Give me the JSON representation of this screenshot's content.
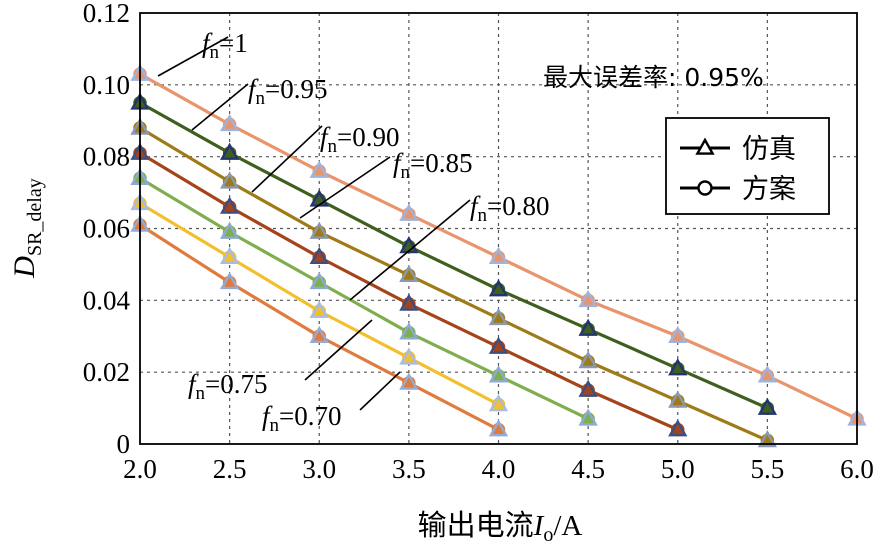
{
  "chart_data": {
    "type": "line",
    "xlabel": {
      "prefix": "输出电流",
      "var": "I",
      "sub": "o",
      "suffix": "/A"
    },
    "ylabel": {
      "var": "D",
      "sub": "SR_delay"
    },
    "xlim": [
      2.0,
      6.0
    ],
    "ylim": [
      0,
      0.12
    ],
    "x_ticks": [
      "2.0",
      "2.5",
      "3.0",
      "3.5",
      "4.0",
      "4.5",
      "5.0",
      "5.5",
      "6.0"
    ],
    "y_ticks": [
      "0",
      "0.02",
      "0.04",
      "0.06",
      "0.08",
      "0.10",
      "0.12"
    ],
    "grid": true,
    "note": "最大误差率: 0.95%",
    "legend": {
      "position": "upper-right",
      "entries": [
        {
          "label": "仿真",
          "marker": "triangle"
        },
        {
          "label": "方案",
          "marker": "circle"
        }
      ]
    },
    "series": [
      {
        "label": "=1",
        "color": "#E8956E",
        "tri_color": "#9FB4DD",
        "x": [
          2.0,
          2.5,
          3.0,
          3.5,
          4.0,
          4.5,
          5.0,
          5.5,
          6.0
        ],
        "y": [
          0.103,
          0.089,
          0.076,
          0.064,
          0.052,
          0.04,
          0.03,
          0.019,
          0.007
        ]
      },
      {
        "label": "=0.95",
        "color": "#3F5F1E",
        "tri_color": "#24356E",
        "x": [
          2.0,
          2.5,
          3.0,
          3.5,
          4.0,
          4.5,
          5.0,
          5.5
        ],
        "y": [
          0.095,
          0.081,
          0.068,
          0.055,
          0.043,
          0.032,
          0.021,
          0.01
        ]
      },
      {
        "label": "=0.90",
        "color": "#9E7B16",
        "tri_color": "#8A98B0",
        "x": [
          2.0,
          2.5,
          3.0,
          3.5,
          4.0,
          4.5,
          5.0,
          5.5
        ],
        "y": [
          0.088,
          0.073,
          0.059,
          0.047,
          0.035,
          0.023,
          0.012,
          0.001
        ]
      },
      {
        "label": "=0.85",
        "color": "#A5441B",
        "tri_color": "#3E4E7E",
        "x": [
          2.0,
          2.5,
          3.0,
          3.5,
          4.0,
          4.5,
          5.0
        ],
        "y": [
          0.081,
          0.066,
          0.052,
          0.039,
          0.027,
          0.015,
          0.004
        ]
      },
      {
        "label": "=0.80",
        "color": "#7FAE4E",
        "tri_color": "#8DAAD4",
        "x": [
          2.0,
          2.5,
          3.0,
          3.5,
          4.0,
          4.5
        ],
        "y": [
          0.074,
          0.059,
          0.045,
          0.031,
          0.019,
          0.007
        ]
      },
      {
        "label": "=0.75",
        "color": "#F2C02E",
        "tri_color": "#A8BCE0",
        "x": [
          2.0,
          2.5,
          3.0,
          3.5,
          4.0
        ],
        "y": [
          0.067,
          0.052,
          0.037,
          0.024,
          0.011
        ]
      },
      {
        "label": "=0.70",
        "color": "#E07A3D",
        "tri_color": "#93ACD6",
        "x": [
          2.0,
          2.5,
          3.0,
          3.5,
          4.0
        ],
        "y": [
          0.061,
          0.045,
          0.03,
          0.017,
          0.004
        ]
      }
    ]
  }
}
